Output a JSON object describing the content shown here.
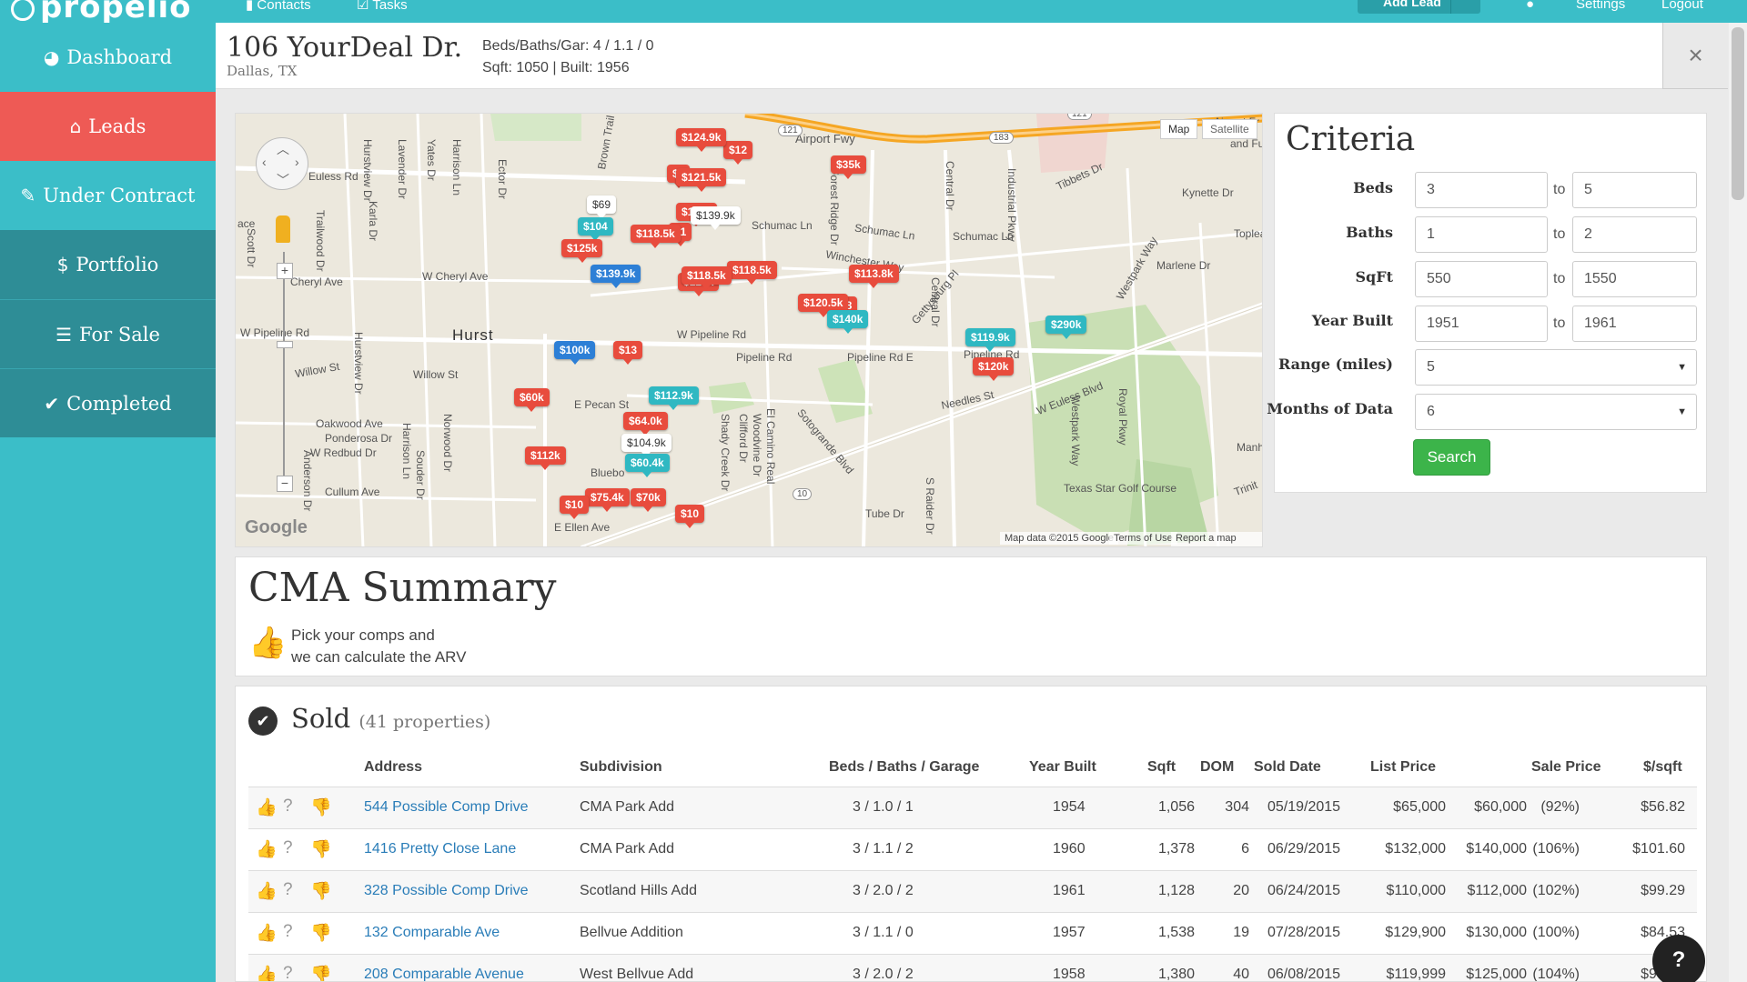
{
  "app": {
    "title": "propelio",
    "top_nav": [
      "Contacts",
      "Tasks"
    ],
    "add_lead": "Add Lead",
    "settings": "Settings",
    "logout": "Logout"
  },
  "sidebar": {
    "items": [
      {
        "label": "Dashboard",
        "icon": "dashboard-icon"
      },
      {
        "label": "Leads",
        "icon": "home-icon"
      },
      {
        "label": "Under Contract",
        "icon": "edit-icon"
      },
      {
        "label": "Portfolio",
        "icon": "dollar-icon"
      },
      {
        "label": "For Sale",
        "icon": "list-icon"
      },
      {
        "label": "Completed",
        "icon": "check-icon"
      }
    ]
  },
  "header": {
    "address": "106 YourDeal Dr.",
    "city": "Dallas, TX",
    "beds_baths_gar": "Beds/Baths/Gar: 4 / 1.1 / 0",
    "sqft_built": "Sqft: 1050 | Built: 1956",
    "close": "×"
  },
  "map": {
    "type_map": "Map",
    "type_satellite": "Satellite",
    "city": "Hurst",
    "streets": {
      "airport_fwy": "Airport Fwy",
      "euless_rd": "Euless Rd",
      "cheryl_ave": "W Cheryl Ave",
      "cheryl_ave2": "Cheryl Ave",
      "pipeline_rd_w": "W Pipeline Rd",
      "pipeline_rd": "Pipeline Rd",
      "pipeline_rd_e": "Pipeline Rd E",
      "pipeline_rd3": "Pipeline Rd",
      "willow_st": "Willow St",
      "willow_st2": "Willow St",
      "oakwood": "Oakwood Ave",
      "ponderosa": "Ponderosa Dr",
      "redbud": "W Redbud Dr",
      "cullum": "Cullum Ave",
      "pecan": "E Pecan St",
      "schumac1": "Schumac Ln",
      "schumac2": "Schumac Ln",
      "schumac3": "Schumac Ln",
      "winchester": "Winchester Way",
      "needles": "Needles St",
      "euless_blvd": "W Euless Blvd",
      "tibbets": "Tibbets Dr",
      "kynette": "Kynette Dr",
      "marlene": "Marlene Dr",
      "tube": "Tube Dr",
      "ellen": "E Ellen Ave",
      "texas_star": "Texas Star Golf Course",
      "manh": "Manh",
      "trinit": "Trinit",
      "toplea": "Toplea",
      "airport_fr": "Airport Fr",
      "and_fu": "and Fu",
      "ace": "ace",
      "bluebo": "Bluebo",
      "brown_trail": "Brown Trail",
      "forest_ridge": "Forest Ridge Dr",
      "central_dr": "Central Dr",
      "central_dr2": "Central Dr",
      "industrial": "Industrial Pkwy",
      "westpark": "Westpark Way",
      "westpark2": "Westpark Way",
      "gettysburg": "Gettysburg Pl",
      "sotogrande": "Sotogrande Blvd",
      "shady_creek": "Shady Creek Dr",
      "el_camino": "El Camino Real",
      "clifford": "Clifford Dr",
      "woodvine": "Woodvine Dr",
      "royal": "Royal Pkwy",
      "raider": "S Raider Dr",
      "hurstview": "Hurstview Dr",
      "lavender": "Lavender Dr",
      "yates": "Yates Dr",
      "harrison": "Harrison Ln",
      "norwood": "Norwood Dr",
      "souder": "Souder Dr",
      "harrison2": "Harrison Ln",
      "karla": "Karla Dr",
      "trailwood": "Trailwood Dr",
      "scott": "Scott Dr",
      "anderson": "Anderson Dr",
      "hurstview2": "Hurstview Dr",
      "ector": "Ector Dr"
    },
    "shields": [
      "121",
      "183",
      "121",
      "10"
    ],
    "google": "Google",
    "attribution": [
      "Map data ©2015 Google",
      "Terms of Use",
      "Report a map error"
    ],
    "pins": [
      {
        "label": "$124.9k",
        "color": "red"
      },
      {
        "label": "$121.5k",
        "color": "red"
      },
      {
        "label": "$35k",
        "color": "red"
      },
      {
        "label": "$69",
        "color": "white"
      },
      {
        "label": "$115k",
        "color": "red"
      },
      {
        "label": "$139.9k",
        "color": "white"
      },
      {
        "label": "$104",
        "color": "teal"
      },
      {
        "label": "$118.5k",
        "color": "red"
      },
      {
        "label": "$125k",
        "color": "red"
      },
      {
        "label": "$139.9k",
        "color": "blue"
      },
      {
        "label": "$118.5k",
        "color": "red"
      },
      {
        "label": "$113.8k",
        "color": "red"
      },
      {
        "label": "$120.5k",
        "color": "red"
      },
      {
        "label": "$140k",
        "color": "teal"
      },
      {
        "label": "$290k",
        "color": "teal"
      },
      {
        "label": "$119.9k",
        "color": "teal"
      },
      {
        "label": "$120k",
        "color": "red"
      },
      {
        "label": "$13",
        "color": "red"
      },
      {
        "label": "$100k",
        "color": "blue"
      },
      {
        "label": "$112.9k",
        "color": "teal"
      },
      {
        "label": "$60k",
        "color": "red"
      },
      {
        "label": "$64.0k",
        "color": "red"
      },
      {
        "label": "$104.9k",
        "color": "white"
      },
      {
        "label": "$112k",
        "color": "red"
      },
      {
        "label": "$60.4k",
        "color": "teal"
      },
      {
        "label": "$75.4k",
        "color": "red"
      },
      {
        "label": "$70k",
        "color": "red"
      },
      {
        "label": "$10",
        "color": "red"
      },
      {
        "label": "$1",
        "color": "red"
      },
      {
        "label": "$8",
        "color": "red"
      },
      {
        "label": "$8",
        "color": "red"
      },
      {
        "label": "$12",
        "color": "red"
      }
    ]
  },
  "criteria": {
    "title": "Criteria",
    "to": "to",
    "fields": [
      {
        "label": "Beds",
        "from": "3",
        "to": "5"
      },
      {
        "label": "Baths",
        "from": "1",
        "to": "2"
      },
      {
        "label": "SqFt",
        "from": "550",
        "to": "1550"
      },
      {
        "label": "Year Built",
        "from": "1951",
        "to": "1961"
      }
    ],
    "range_label": "Range (miles)",
    "range_value": "5",
    "months_label": "Months of Data",
    "months_value": "6",
    "search": "Search"
  },
  "cma": {
    "title": "CMA Summary",
    "line1": "Pick your comps and",
    "line2": "we can calculate the ARV"
  },
  "sold": {
    "title": "Sold",
    "count": "(41 properties)",
    "columns": [
      "Address",
      "Subdivision",
      "Beds / Baths / Garage",
      "Year Built",
      "Sqft",
      "DOM",
      "Sold Date",
      "List Price",
      "Sale Price",
      "$/sqft"
    ],
    "rows": [
      {
        "address": "544 Possible Comp Drive",
        "subdivision": "CMA Park Add",
        "bbg": "3 / 1.0 / 1",
        "year": "1954",
        "sqft": "1,056",
        "dom": "304",
        "sold_date": "05/19/2015",
        "list_price": "$65,000",
        "sale_price": "$60,000",
        "pct": "(92%)",
        "per_sqft": "$56.82"
      },
      {
        "address": "1416 Pretty Close Lane",
        "subdivision": "CMA Park Add",
        "bbg": "3 / 1.1 / 2",
        "year": "1960",
        "sqft": "1,378",
        "dom": "6",
        "sold_date": "06/29/2015",
        "list_price": "$132,000",
        "sale_price": "$140,000",
        "pct": "(106%)",
        "per_sqft": "$101.60"
      },
      {
        "address": "328 Possible Comp Drive",
        "subdivision": "Scotland Hills Add",
        "bbg": "3 / 2.0 / 2",
        "year": "1961",
        "sqft": "1,128",
        "dom": "20",
        "sold_date": "06/24/2015",
        "list_price": "$110,000",
        "sale_price": "$112,000",
        "pct": "(102%)",
        "per_sqft": "$99.29"
      },
      {
        "address": "132 Comparable Ave",
        "subdivision": "Bellvue Addition",
        "bbg": "3 / 1.1 / 0",
        "year": "1957",
        "sqft": "1,538",
        "dom": "19",
        "sold_date": "07/28/2015",
        "list_price": "$129,900",
        "sale_price": "$130,000",
        "pct": "(100%)",
        "per_sqft": "$84.53"
      },
      {
        "address": "208 Comparable Avenue",
        "subdivision": "West Bellvue Add",
        "bbg": "3 / 2.0 / 2",
        "year": "1958",
        "sqft": "1,380",
        "dom": "40",
        "sold_date": "06/08/2015",
        "list_price": "$119,999",
        "sale_price": "$125,000",
        "pct": "(104%)",
        "per_sqft": "$90.58"
      }
    ],
    "row_icons": [
      "thumbs-up-icon",
      "question-icon",
      "thumbs-down-icon"
    ]
  },
  "help": "?"
}
